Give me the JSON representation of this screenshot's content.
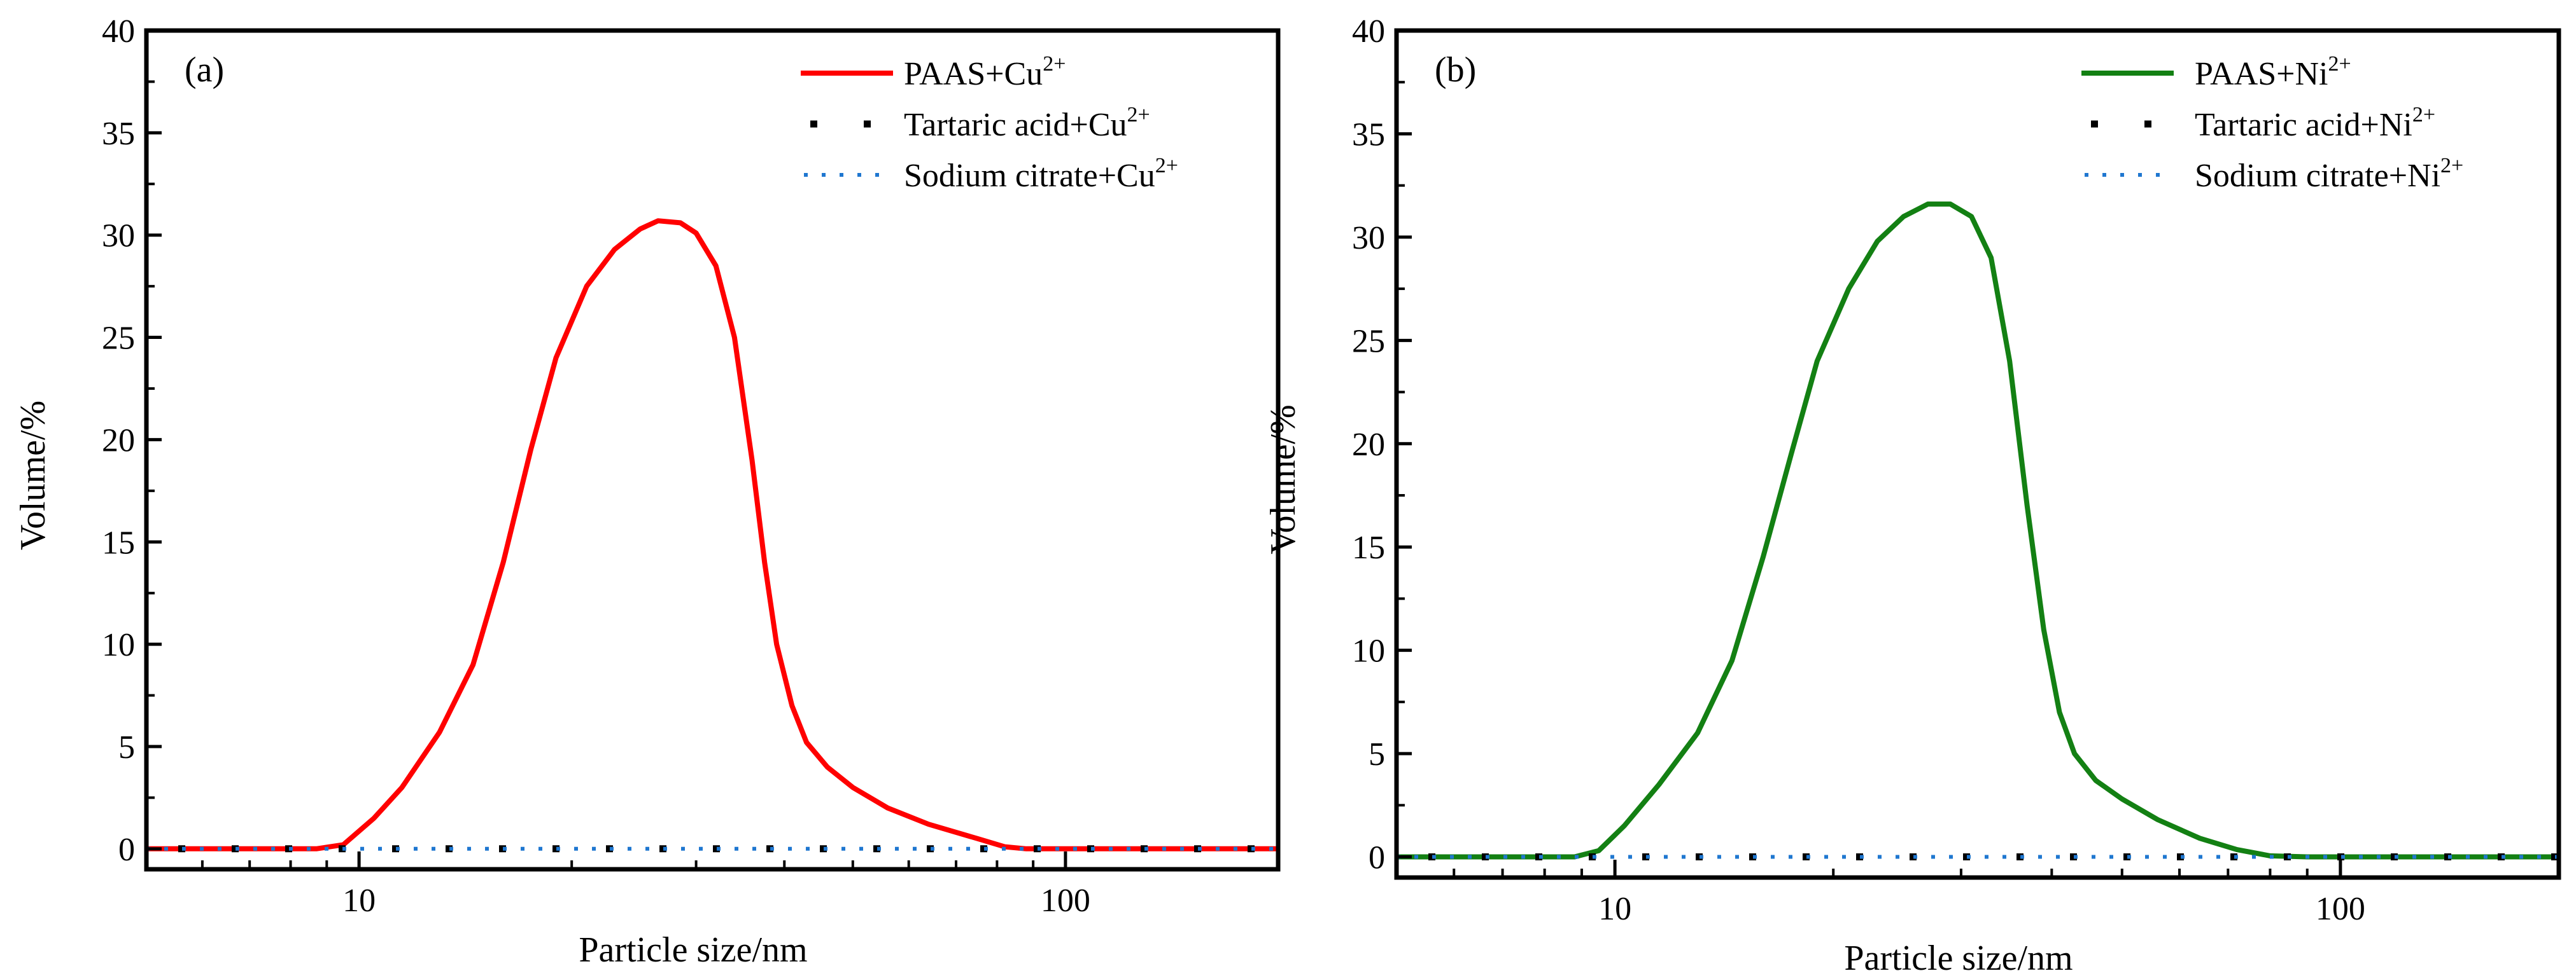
{
  "chart_data": [
    {
      "type": "line",
      "panel_label": "(a)",
      "xscale": "log",
      "xlim": [
        5,
        200
      ],
      "ylim": [
        -1,
        40
      ],
      "xlabel": "Particle size/nm",
      "ylabel": "Volume/%",
      "x_tick_values": [
        10,
        100
      ],
      "x_tick_labels": [
        "10",
        "100"
      ],
      "y_tick_values": [
        0,
        5,
        10,
        15,
        20,
        25,
        30,
        35,
        40
      ],
      "y_tick_labels": [
        "0",
        "5",
        "10",
        "15",
        "20",
        "25",
        "30",
        "35",
        "40"
      ],
      "legend_position": "top-right",
      "series": [
        {
          "name": "PAAS+Cu",
          "name_sup": "2+",
          "style": "solid",
          "color": "#ff0000",
          "x": [
            5,
            7,
            8.7,
            9.5,
            10.5,
            11.5,
            13,
            14.5,
            16,
            17.5,
            19,
            21,
            23,
            25,
            26.5,
            28.5,
            30,
            32,
            34,
            36,
            37.5,
            39,
            41,
            43,
            46,
            50,
            56,
            64,
            75,
            82,
            88,
            100,
            150,
            200
          ],
          "y": [
            0,
            0,
            0,
            0.2,
            1.5,
            3.0,
            5.7,
            9.0,
            14.0,
            19.5,
            24.0,
            27.5,
            29.3,
            30.3,
            30.7,
            30.6,
            30.1,
            28.5,
            25.0,
            19.0,
            14.0,
            10.0,
            7.0,
            5.2,
            4.0,
            3.0,
            2.0,
            1.2,
            0.5,
            0.1,
            0,
            0,
            0,
            0
          ]
        },
        {
          "name": "Tartaric acid+Cu",
          "name_sup": "2+",
          "style": "dashed",
          "color": "#000000",
          "x": [
            5,
            200
          ],
          "y": [
            0,
            0
          ]
        },
        {
          "name": "Sodium citrate+Cu",
          "name_sup": "2+",
          "style": "dotted",
          "color": "#1f77d0",
          "x": [
            5,
            200
          ],
          "y": [
            0,
            0
          ]
        }
      ]
    },
    {
      "type": "line",
      "panel_label": "(b)",
      "xscale": "log",
      "xlim": [
        5,
        200
      ],
      "ylim": [
        -1,
        40
      ],
      "xlabel": "Particle size/nm",
      "ylabel": "Volume/%",
      "x_tick_values": [
        10,
        100
      ],
      "x_tick_labels": [
        "10",
        "100"
      ],
      "y_tick_values": [
        0,
        5,
        10,
        15,
        20,
        25,
        30,
        35,
        40
      ],
      "y_tick_labels": [
        "0",
        "5",
        "10",
        "15",
        "20",
        "25",
        "30",
        "35",
        "40"
      ],
      "legend_position": "top-right",
      "series": [
        {
          "name": "PAAS+Ni",
          "name_sup": "2+",
          "style": "solid",
          "color": "#138013",
          "x": [
            5,
            7,
            8.8,
            9.5,
            10.3,
            11.5,
            13,
            14.5,
            16,
            17.5,
            19,
            21,
            23,
            25,
            27,
            29,
            31,
            33,
            35,
            37,
            39,
            41,
            43,
            46,
            50,
            56,
            64,
            72,
            80,
            90,
            100,
            150,
            200
          ],
          "y": [
            0,
            0,
            0,
            0.3,
            1.5,
            3.5,
            6.0,
            9.5,
            14.5,
            19.5,
            24.0,
            27.5,
            29.8,
            31.0,
            31.6,
            31.6,
            31.0,
            29.0,
            24.0,
            17.0,
            11.0,
            7.0,
            5.0,
            3.7,
            2.8,
            1.8,
            0.9,
            0.35,
            0.05,
            0,
            0,
            0,
            0
          ]
        },
        {
          "name": "Tartaric acid+Ni",
          "name_sup": "2+",
          "style": "dashed",
          "color": "#000000",
          "x": [
            5,
            200
          ],
          "y": [
            0,
            0
          ]
        },
        {
          "name": "Sodium citrate+Ni",
          "name_sup": "2+",
          "style": "dotted",
          "color": "#1f77d0",
          "x": [
            5,
            200
          ],
          "y": [
            0,
            0
          ]
        }
      ]
    }
  ]
}
